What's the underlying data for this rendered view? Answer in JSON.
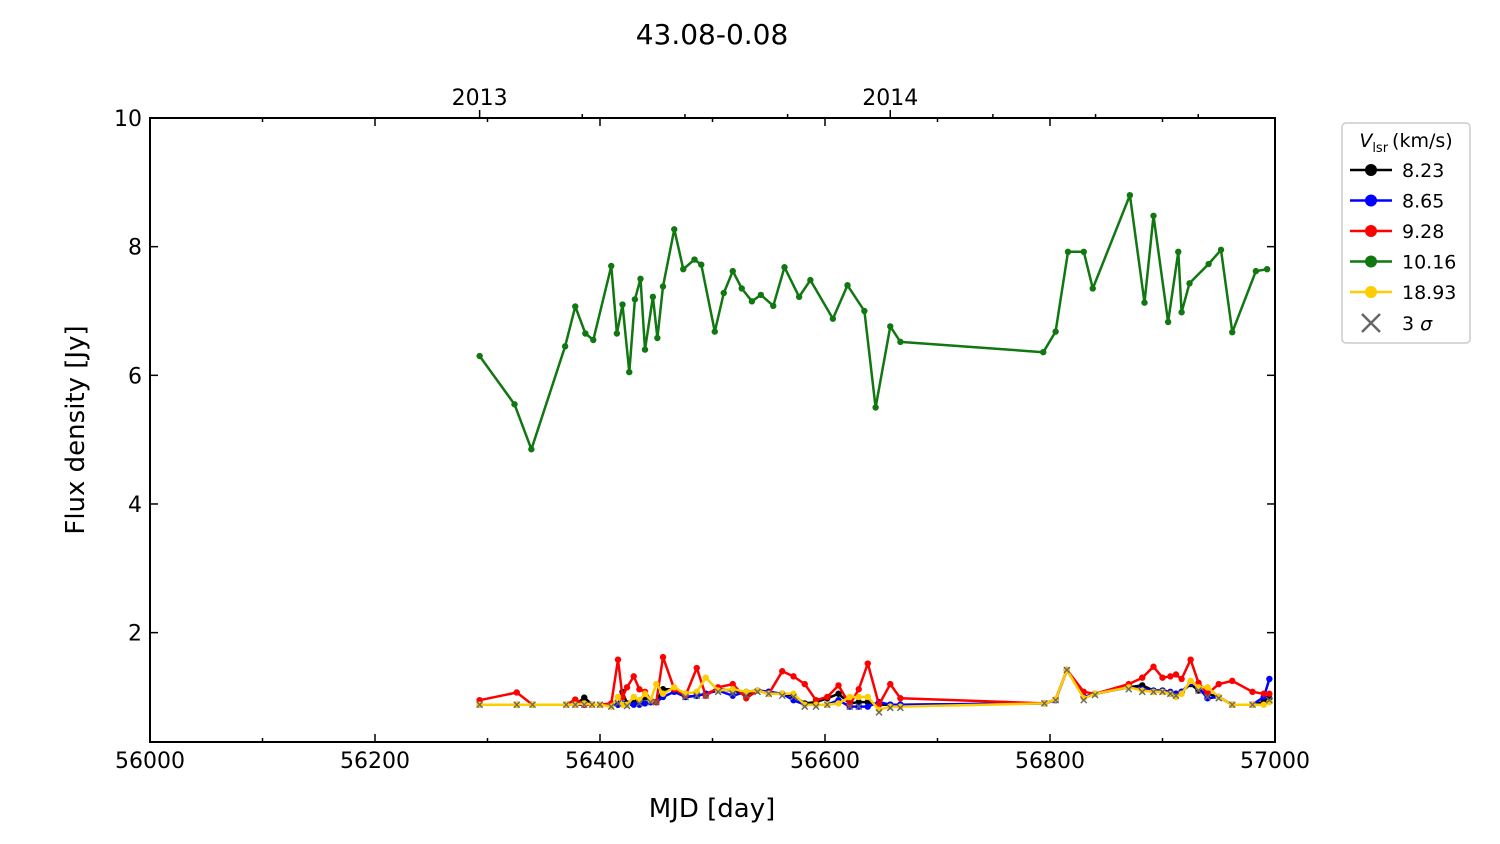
{
  "chart_data": {
    "type": "line",
    "title": "43.08-0.08",
    "xlabel": "MJD [day]",
    "ylabel": "Flux density [Jy]",
    "xlim": [
      56000,
      57000
    ],
    "ylim": [
      0.3,
      10
    ],
    "xticks": [
      56000,
      56200,
      56400,
      56600,
      56800,
      57000
    ],
    "yticks": [
      2,
      4,
      6,
      8,
      10
    ],
    "top_axis": {
      "ticks": [
        {
          "x": 56293,
          "label": "2013"
        },
        {
          "x": 56658,
          "label": "2014"
        }
      ]
    },
    "grid": false,
    "legend": {
      "placement": "outside-right-top",
      "title_main": "V",
      "title_sub": "lsr",
      "title_unit": "(km/s)",
      "sigma_label": "3",
      "sigma_symbol": "σ",
      "sigma_color": "#666666"
    },
    "series": [
      {
        "name": "8.23",
        "color": "#000000",
        "x": [
          56293,
          56326,
          56340,
          56370,
          56378,
          56386,
          56393,
          56400,
          56410,
          56416,
          56420,
          56424,
          56430,
          56435,
          56440,
          56445,
          56450,
          56456,
          56466,
          56476,
          56486,
          56494,
          56505,
          56518,
          56530,
          56540,
          56550,
          56562,
          56572,
          56582,
          56592,
          56602,
          56612,
          56622,
          56630,
          56638,
          56648,
          56658,
          56667,
          56795,
          56805,
          56815,
          56830,
          56840,
          56870,
          56882,
          56892,
          56900,
          56907,
          56912,
          56917,
          56925,
          56932,
          56940,
          56950,
          56962,
          56980,
          56990,
          56995
        ],
        "y": [
          0.88,
          0.88,
          0.88,
          0.88,
          0.88,
          0.99,
          0.88,
          0.88,
          0.88,
          0.88,
          1.08,
          0.9,
          0.95,
          0.9,
          1.0,
          0.92,
          0.92,
          1.12,
          1.12,
          1.0,
          1.02,
          1.05,
          1.12,
          1.1,
          1.05,
          1.1,
          1.08,
          1.05,
          1.02,
          0.9,
          0.92,
          0.98,
          1.05,
          0.9,
          0.92,
          0.92,
          0.88,
          0.88,
          0.88,
          0.9,
          0.96,
          1.42,
          1.0,
          1.05,
          1.15,
          1.18,
          1.1,
          1.1,
          1.05,
          1.05,
          1.08,
          1.2,
          1.1,
          1.05,
          1.0,
          0.88,
          0.88,
          0.92,
          0.98
        ]
      },
      {
        "name": "8.65",
        "color": "#0000ff",
        "x": [
          56293,
          56326,
          56340,
          56370,
          56378,
          56386,
          56393,
          56400,
          56410,
          56416,
          56420,
          56424,
          56430,
          56435,
          56440,
          56445,
          56450,
          56456,
          56466,
          56476,
          56486,
          56494,
          56505,
          56518,
          56530,
          56540,
          56550,
          56562,
          56572,
          56582,
          56592,
          56602,
          56612,
          56622,
          56630,
          56638,
          56648,
          56658,
          56667,
          56795,
          56805,
          56815,
          56830,
          56840,
          56870,
          56882,
          56892,
          56900,
          56907,
          56912,
          56917,
          56925,
          56932,
          56940,
          56950,
          56962,
          56980,
          56990,
          56995
        ],
        "y": [
          0.88,
          0.88,
          0.88,
          0.88,
          0.88,
          0.88,
          0.88,
          0.88,
          0.88,
          0.88,
          0.9,
          0.88,
          0.88,
          0.88,
          0.9,
          0.92,
          0.92,
          1.0,
          1.08,
          1.0,
          1.02,
          1.05,
          1.1,
          1.02,
          1.08,
          1.1,
          1.08,
          1.05,
          0.95,
          0.88,
          0.88,
          0.88,
          0.95,
          0.85,
          0.85,
          0.85,
          0.92,
          0.88,
          0.88,
          0.9,
          0.95,
          1.42,
          1.0,
          1.05,
          1.15,
          1.12,
          1.1,
          1.1,
          1.08,
          1.05,
          1.08,
          1.22,
          1.15,
          0.98,
          1.0,
          0.88,
          0.88,
          1.0,
          1.28
        ]
      },
      {
        "name": "9.28",
        "color": "#ff0000",
        "x": [
          56293,
          56326,
          56340,
          56370,
          56378,
          56386,
          56393,
          56400,
          56410,
          56416,
          56420,
          56424,
          56430,
          56435,
          56440,
          56445,
          56450,
          56456,
          56466,
          56476,
          56486,
          56494,
          56505,
          56518,
          56530,
          56540,
          56550,
          56562,
          56572,
          56582,
          56592,
          56602,
          56612,
          56622,
          56630,
          56638,
          56648,
          56658,
          56667,
          56795,
          56805,
          56815,
          56830,
          56840,
          56870,
          56882,
          56892,
          56900,
          56907,
          56912,
          56917,
          56925,
          56932,
          56940,
          56950,
          56962,
          56980,
          56990,
          56995
        ],
        "y": [
          0.95,
          1.07,
          0.88,
          0.88,
          0.96,
          0.88,
          0.88,
          0.88,
          0.9,
          1.58,
          1.0,
          1.15,
          1.32,
          1.12,
          1.08,
          0.95,
          0.92,
          1.62,
          1.12,
          1.02,
          1.45,
          1.02,
          1.15,
          1.2,
          0.98,
          1.1,
          1.05,
          1.4,
          1.32,
          1.2,
          0.95,
          1.0,
          1.18,
          0.88,
          1.12,
          1.52,
          0.88,
          1.2,
          0.98,
          0.9,
          0.96,
          1.42,
          1.08,
          1.05,
          1.2,
          1.3,
          1.47,
          1.3,
          1.32,
          1.35,
          1.28,
          1.58,
          1.22,
          1.05,
          1.2,
          1.25,
          1.08,
          1.05,
          1.05
        ]
      },
      {
        "name": "10.16",
        "color": "#117711",
        "x": [
          56293,
          56324,
          56339,
          56369,
          56378,
          56387,
          56394,
          56410,
          56415,
          56420,
          56426,
          56431,
          56436,
          56440,
          56447,
          56451,
          56456,
          56466,
          56474,
          56484,
          56490,
          56502,
          56510,
          56518,
          56526,
          56535,
          56543,
          56554,
          56564,
          56577,
          56587,
          56607,
          56620,
          56635,
          56645,
          56658,
          56667,
          56794,
          56805,
          56816,
          56830,
          56838,
          56871,
          56884,
          56892,
          56905,
          56914,
          56917,
          56924,
          56941,
          56952,
          56962,
          56983,
          56993
        ],
        "y": [
          6.3,
          5.55,
          4.85,
          6.45,
          7.07,
          6.65,
          6.55,
          7.7,
          6.65,
          7.1,
          6.05,
          7.18,
          7.5,
          6.4,
          7.22,
          6.58,
          7.38,
          8.27,
          7.65,
          7.8,
          7.72,
          6.68,
          7.28,
          7.62,
          7.35,
          7.15,
          7.25,
          7.08,
          7.68,
          7.22,
          7.48,
          6.88,
          7.4,
          7.0,
          5.5,
          6.76,
          6.52,
          6.36,
          6.68,
          7.92,
          7.92,
          7.35,
          8.8,
          7.13,
          8.48,
          6.83,
          7.92,
          6.98,
          7.43,
          7.73,
          7.95,
          6.67,
          7.62,
          7.65
        ]
      },
      {
        "name": "18.93",
        "color": "#ffcc00",
        "x": [
          56293,
          56326,
          56340,
          56370,
          56378,
          56386,
          56393,
          56400,
          56410,
          56416,
          56420,
          56424,
          56430,
          56435,
          56440,
          56445,
          56450,
          56456,
          56466,
          56476,
          56486,
          56494,
          56505,
          56518,
          56530,
          56540,
          56550,
          56562,
          56572,
          56582,
          56592,
          56602,
          56612,
          56622,
          56630,
          56638,
          56648,
          56658,
          56667,
          56795,
          56805,
          56815,
          56830,
          56840,
          56870,
          56882,
          56892,
          56900,
          56907,
          56912,
          56917,
          56925,
          56932,
          56940,
          56950,
          56962,
          56980,
          56990,
          56995
        ],
        "y": [
          0.88,
          0.88,
          0.88,
          0.88,
          0.88,
          0.9,
          0.88,
          0.88,
          0.85,
          1.0,
          0.88,
          0.88,
          1.0,
          0.95,
          1.05,
          0.95,
          1.2,
          1.05,
          1.15,
          1.05,
          1.08,
          1.3,
          1.1,
          1.12,
          1.08,
          1.1,
          1.05,
          1.05,
          1.05,
          0.88,
          0.88,
          0.88,
          0.9,
          1.0,
          1.0,
          1.0,
          0.8,
          0.85,
          0.85,
          0.9,
          0.96,
          1.42,
          0.98,
          1.05,
          1.15,
          1.1,
          1.08,
          1.08,
          1.05,
          1.0,
          1.05,
          1.25,
          1.15,
          1.15,
          1.0,
          0.88,
          0.88,
          0.88,
          0.92
        ]
      }
    ],
    "three_sigma": {
      "label": "3 σ",
      "x": [
        56293,
        56326,
        56340,
        56370,
        56378,
        56386,
        56393,
        56400,
        56410,
        56416,
        56424,
        56435,
        56445,
        56450,
        56476,
        56486,
        56494,
        56505,
        56518,
        56530,
        56540,
        56550,
        56562,
        56572,
        56582,
        56592,
        56602,
        56622,
        56630,
        56648,
        56658,
        56667,
        56795,
        56805,
        56815,
        56830,
        56840,
        56870,
        56882,
        56892,
        56900,
        56907,
        56912,
        56932,
        56940,
        56950,
        56962,
        56980,
        56995
      ],
      "y": [
        0.88,
        0.88,
        0.88,
        0.88,
        0.88,
        0.88,
        0.88,
        0.88,
        0.85,
        0.9,
        0.86,
        0.9,
        0.92,
        0.92,
        1.0,
        1.02,
        1.02,
        1.08,
        1.05,
        1.02,
        1.08,
        1.05,
        1.02,
        1.0,
        0.85,
        0.85,
        0.88,
        0.85,
        0.85,
        0.76,
        0.83,
        0.83,
        0.9,
        0.95,
        1.42,
        0.95,
        1.03,
        1.12,
        1.08,
        1.08,
        1.08,
        1.05,
        1.02,
        1.1,
        1.0,
        0.98,
        0.88,
        0.88,
        0.95
      ]
    }
  }
}
